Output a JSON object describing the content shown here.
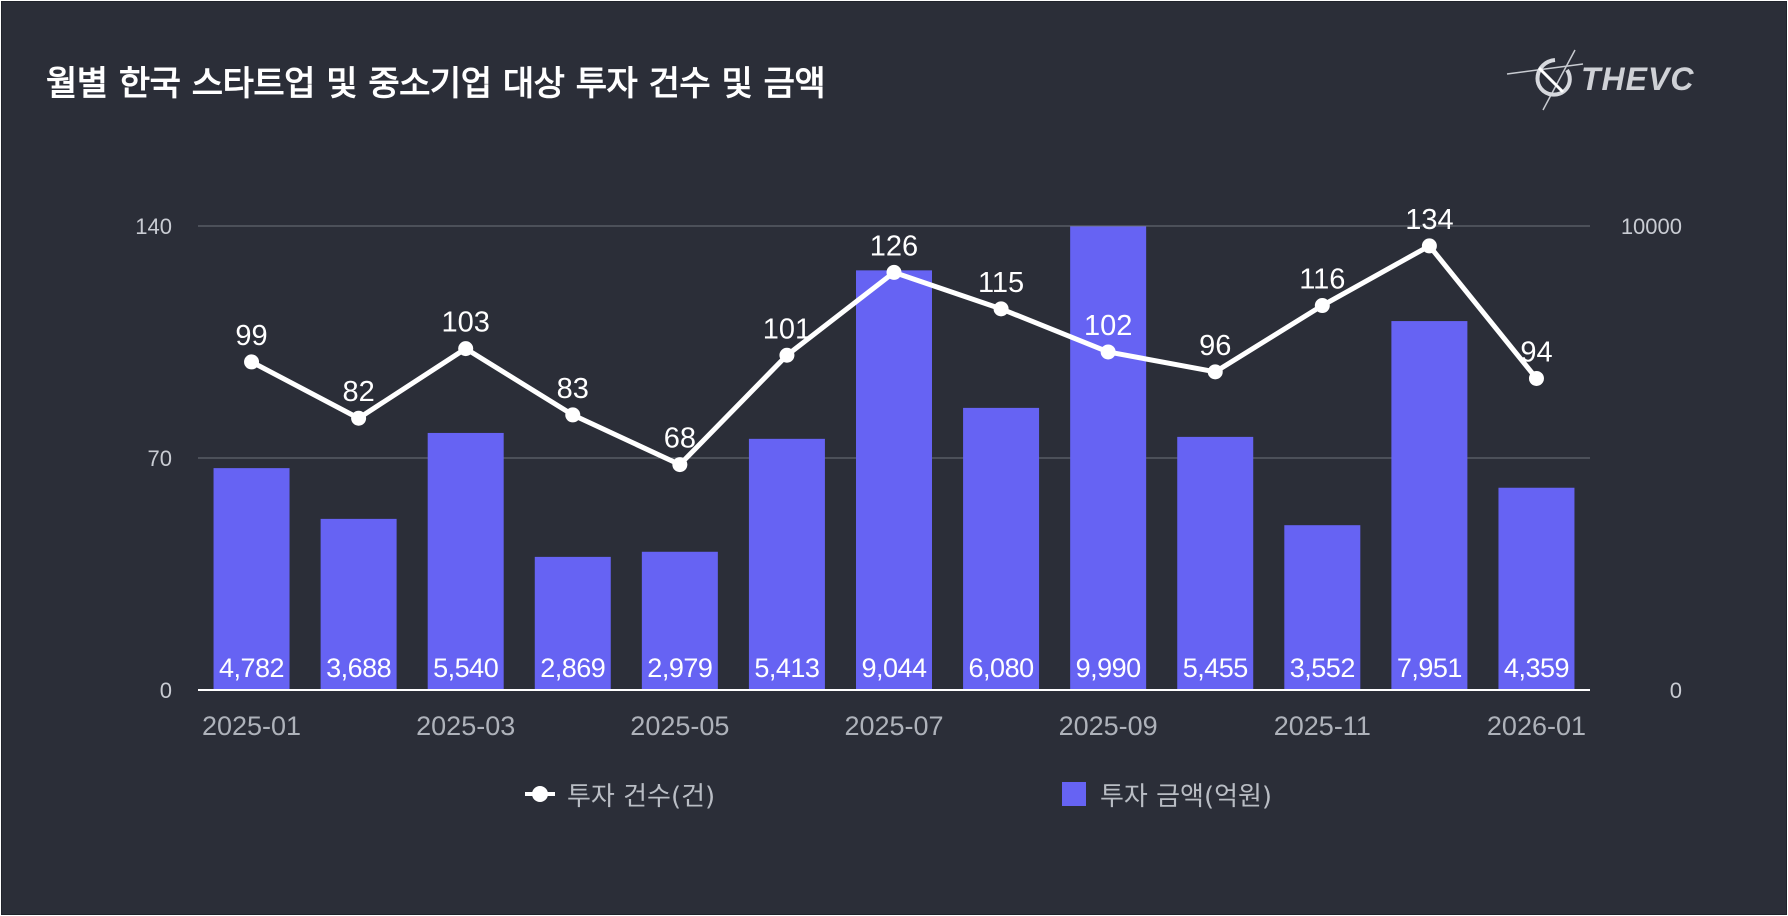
{
  "title": "월별 한국 스타트업 및 중소기업 대상 투자 건수 및 금액",
  "logo_text": "THEVC",
  "colors": {
    "background": "#2b2e38",
    "bar": "#6663f3",
    "line": "#ffffff",
    "grid": "#6d717a"
  },
  "legend": {
    "line_label": "투자 건수(건)",
    "bar_label": "투자 금액(억원)"
  },
  "chart_data": {
    "type": "bar+line",
    "title": "월별 한국 스타트업 및 중소기업 대상 투자 건수 및 금액",
    "categories": [
      "2025-01",
      "2025-02",
      "2025-03",
      "2025-04",
      "2025-05",
      "2025-06",
      "2025-07",
      "2025-08",
      "2025-09",
      "2025-10",
      "2025-11",
      "2025-12",
      "2026-01"
    ],
    "x_tick_labels": [
      "2025-01",
      "2025-03",
      "2025-05",
      "2025-07",
      "2025-09",
      "2025-11",
      "2026-01"
    ],
    "series": [
      {
        "name": "투자 건수(건)",
        "type": "line",
        "axis": "left",
        "values": [
          99,
          82,
          103,
          83,
          68,
          101,
          126,
          115,
          102,
          96,
          116,
          134,
          94
        ],
        "labels": [
          "99",
          "82",
          "103",
          "83",
          "68",
          "101",
          "126",
          "115",
          "102",
          "96",
          "116",
          "134",
          "94"
        ]
      },
      {
        "name": "투자 금액(억원)",
        "type": "bar",
        "axis": "right",
        "values": [
          4782,
          3688,
          5540,
          2869,
          2979,
          5413,
          9044,
          6080,
          9990,
          5455,
          3552,
          7951,
          4359
        ],
        "labels": [
          "4,782",
          "3,688",
          "5,540",
          "2,869",
          "2,979",
          "5,413",
          "9,044",
          "6,080",
          "9,990",
          "5,455",
          "3,552",
          "7,951",
          "4,359"
        ]
      }
    ],
    "y_left": {
      "min": 0,
      "max": 140,
      "ticks": [
        "0",
        "70",
        "140"
      ]
    },
    "y_right": {
      "min": 0,
      "max": 10000,
      "ticks": [
        "0",
        "10000"
      ]
    },
    "grid": true,
    "legend_position": "bottom"
  }
}
